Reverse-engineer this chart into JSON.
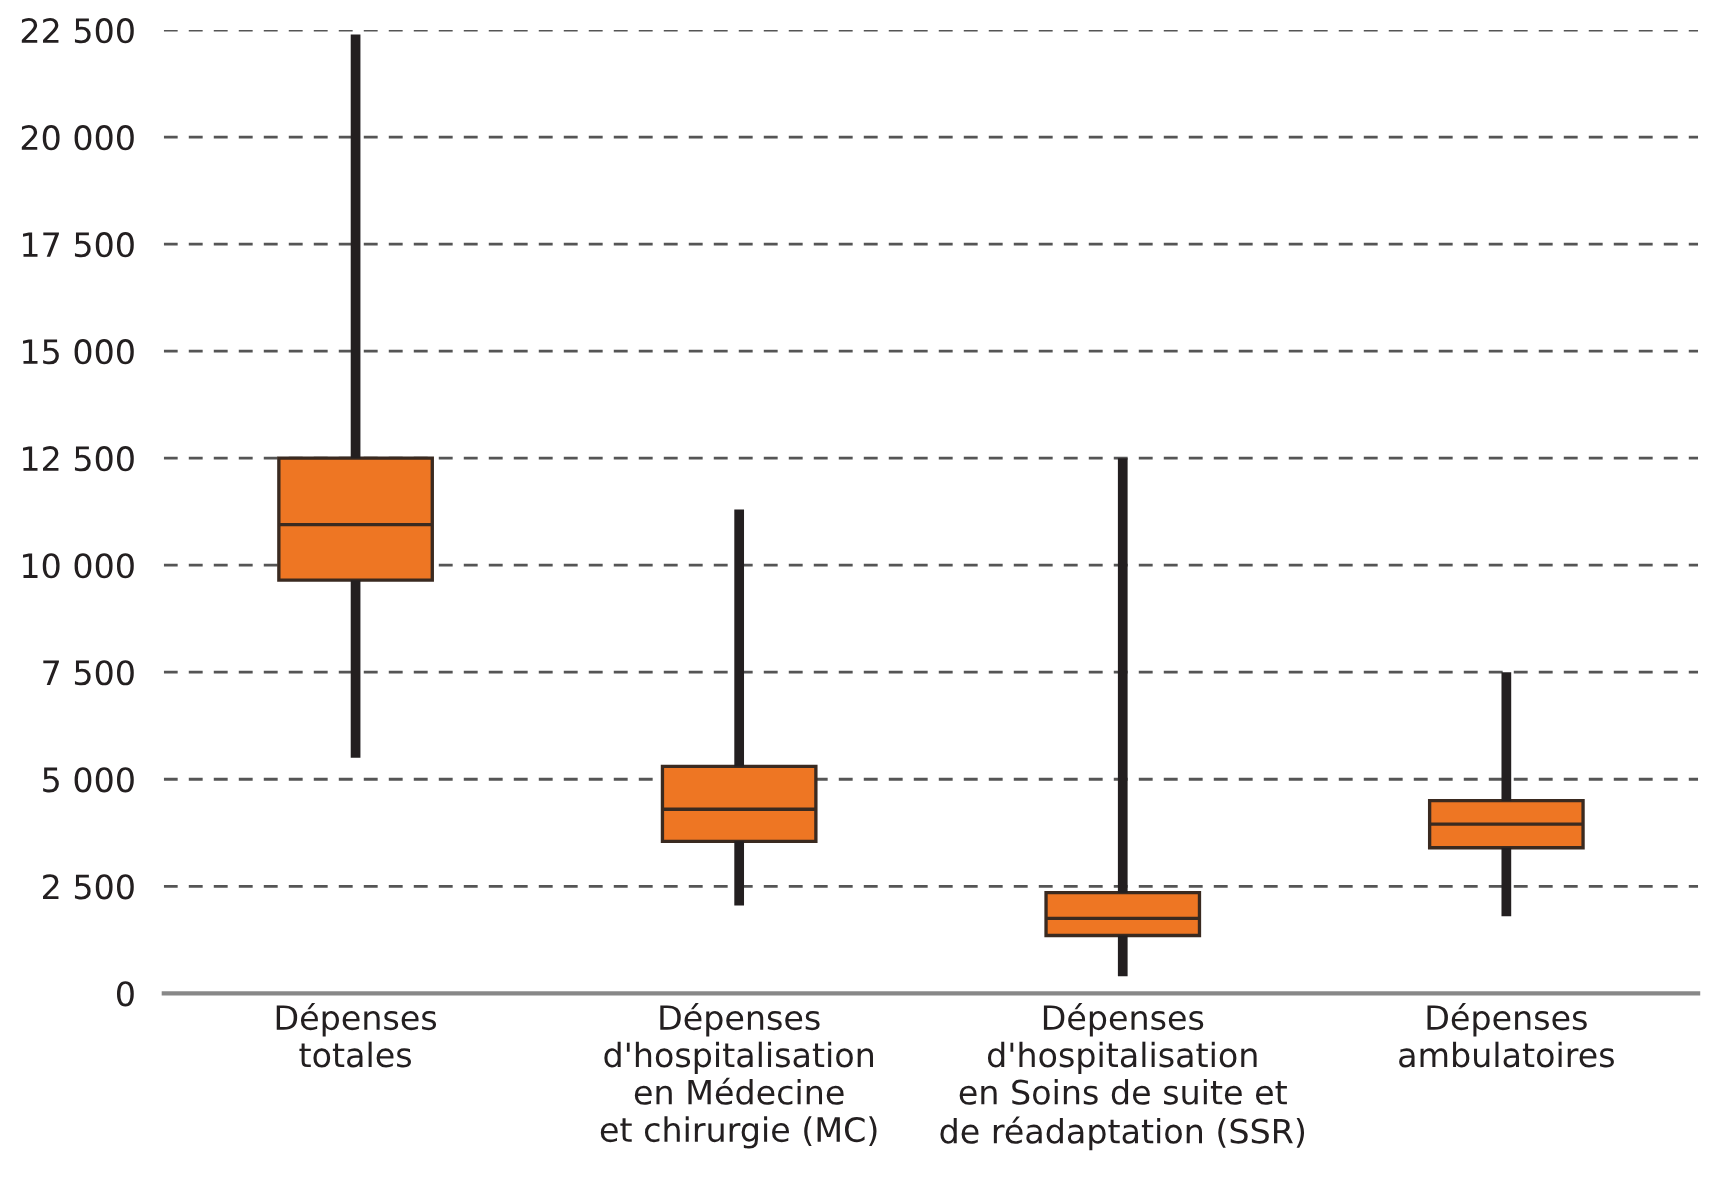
{
  "chart_data": {
    "type": "box",
    "categories": [
      "Dépenses\ntotales",
      "Dépenses\nd'hospitalisation\nen Médecine\net chirurgie (MC)",
      "Dépenses\nd'hospitalisation\nen Soins de suite et\nde réadaptation (SSR)",
      "Dépenses\nambulatoires"
    ],
    "color": "#ee7623",
    "boxes": [
      {
        "low": 5500,
        "q1": 9650,
        "median": 10950,
        "q3": 12500,
        "high": 22400
      },
      {
        "low": 2050,
        "q1": 3550,
        "median": 4300,
        "q3": 5300,
        "high": 11300
      },
      {
        "low": 400,
        "q1": 1350,
        "median": 1750,
        "q3": 2350,
        "high": 12500
      },
      {
        "low": 1800,
        "q1": 3400,
        "median": 3950,
        "q3": 4500,
        "high": 7500
      }
    ],
    "ylim": [
      0,
      22500
    ],
    "yticks": [
      0,
      {
        "value": 2500,
        "label": "2 500"
      },
      {
        "value": 5000,
        "label": "5 000"
      },
      {
        "value": 7500,
        "label": "7 500"
      },
      {
        "value": 10000,
        "label": "10 000"
      },
      {
        "value": 12500,
        "label": "12 500"
      },
      {
        "value": 15000,
        "label": "15 000"
      },
      {
        "value": 17500,
        "label": "17 500"
      },
      {
        "value": 20000,
        "label": "20 000"
      },
      {
        "value": 22500,
        "label": "22 500"
      }
    ],
    "grid": "y"
  }
}
